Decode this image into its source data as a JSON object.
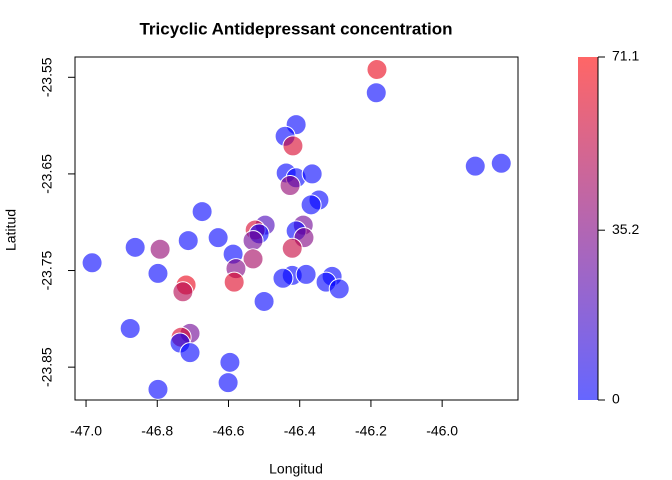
{
  "chart_data": {
    "type": "scatter",
    "title": "Tricyclic Antidepressant concentration",
    "xlabel": "Longitud",
    "ylabel": "Latitud",
    "x": [
      -46.183,
      -46.185,
      -46.41,
      -46.441,
      -46.419,
      -45.907,
      -45.834,
      -46.438,
      -46.41,
      -46.365,
      -46.427,
      -46.346,
      -46.368,
      -46.674,
      -46.39,
      -46.41,
      -46.497,
      -46.525,
      -46.514,
      -46.531,
      -46.629,
      -46.713,
      -46.388,
      -46.862,
      -46.792,
      -46.421,
      -46.587,
      -46.983,
      -46.531,
      -46.579,
      -46.798,
      -46.421,
      -46.382,
      -46.447,
      -46.309,
      -46.584,
      -46.719,
      -46.326,
      -46.289,
      -46.728,
      -46.5,
      -46.876,
      -46.708,
      -46.733,
      -46.736,
      -46.708,
      -46.596,
      -46.601,
      -46.798
    ],
    "values": [
      -23.542,
      -23.566,
      -23.599,
      -23.611,
      -23.621,
      -23.642,
      -23.639,
      -23.649,
      -23.654,
      -23.65,
      -23.662,
      -23.677,
      -23.682,
      -23.689,
      -23.703,
      -23.709,
      -23.703,
      -23.708,
      -23.712,
      -23.719,
      -23.716,
      -23.719,
      -23.716,
      -23.726,
      -23.728,
      -23.727,
      -23.733,
      -23.742,
      -23.738,
      -23.748,
      -23.753,
      -23.755,
      -23.754,
      -23.758,
      -23.756,
      -23.762,
      -23.765,
      -23.762,
      -23.769,
      -23.772,
      -23.782,
      -23.81,
      -23.815,
      -23.819,
      -23.825,
      -23.835,
      -23.845,
      -23.866,
      -23.873
    ],
    "concentration": [
      65,
      0,
      0,
      0,
      60,
      0,
      0,
      0,
      0,
      0,
      40,
      0,
      0,
      0,
      30,
      0,
      20,
      60,
      0,
      30,
      0,
      0,
      35,
      0,
      40,
      55,
      0,
      0,
      45,
      35,
      0,
      0,
      0,
      0,
      0,
      62,
      65,
      0,
      0,
      50,
      0,
      0,
      30,
      60,
      0,
      0,
      0,
      0,
      0
    ],
    "xlim": [
      -47.031,
      -45.787
    ],
    "ylim": [
      -23.884,
      -23.529
    ],
    "xticks": [
      {
        "value": -47,
        "label": "-47.0"
      },
      -46.8,
      -46.6,
      -46.4,
      -46.2,
      {
        "value": -46,
        "label": "-46.0"
      }
    ],
    "yticks": [
      -23.55,
      -23.65,
      -23.75,
      -23.85
    ],
    "clim": [
      0,
      71.1
    ],
    "cticks": [
      0,
      35.2,
      71.1
    ],
    "color_low": "#0000ff",
    "color_high": "#ff0000"
  }
}
